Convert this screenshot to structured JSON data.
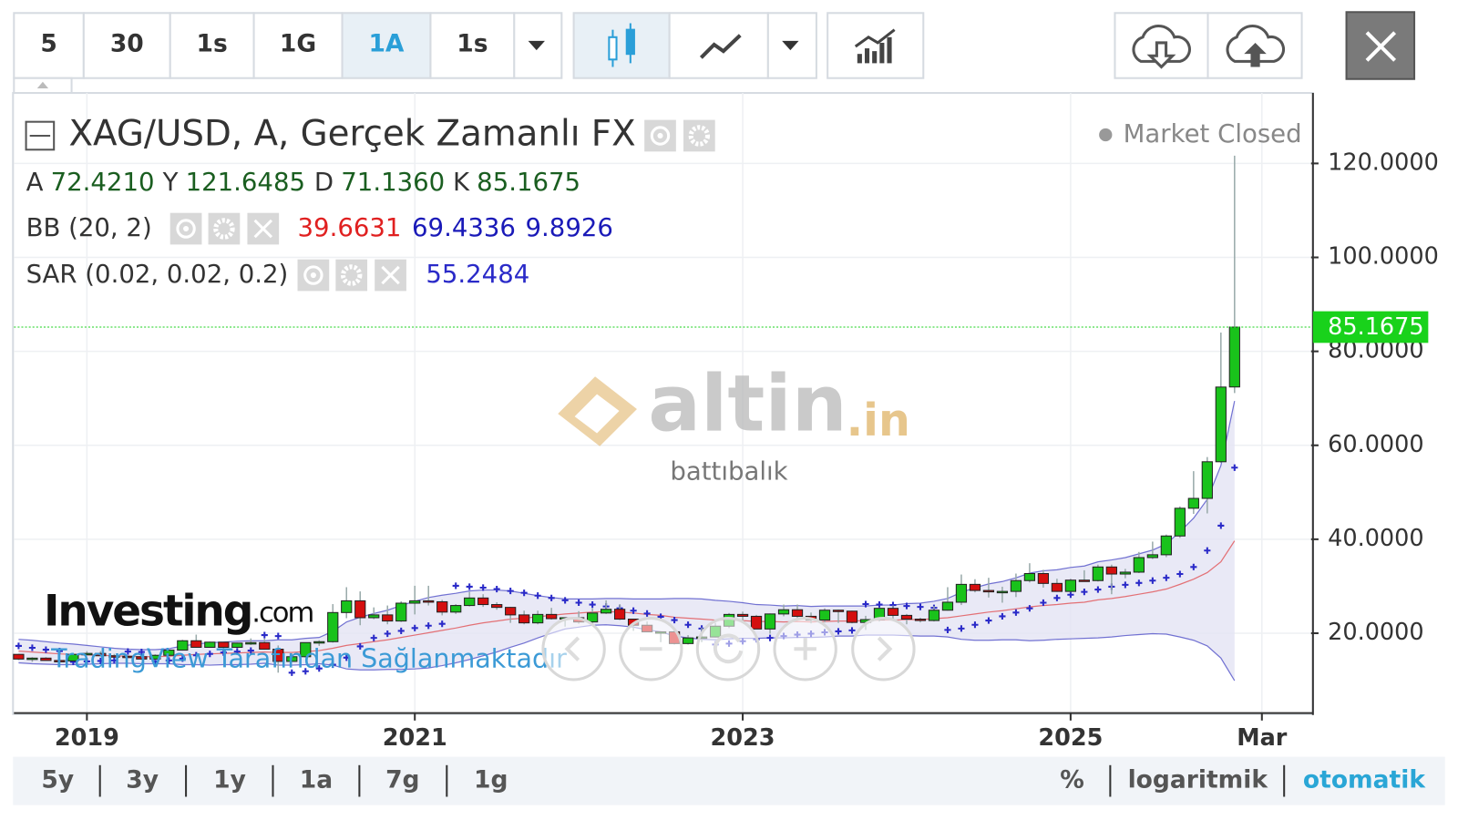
{
  "toolbar": {
    "intervals": [
      "5",
      "30",
      "1s",
      "1G",
      "1A",
      "1s"
    ],
    "active_interval": 4
  },
  "chart_data": {
    "type": "candlestick",
    "title": "XAG/USD, A, Gerçek Zamanlı FX",
    "status": "Market Closed",
    "ohlc_letters": [
      "A",
      "Y",
      "D",
      "K"
    ],
    "ohlc_labels": [
      "72.4210",
      "121.6485",
      "71.1360",
      "85.1675"
    ],
    "up_color": "#19c21b",
    "down_color": "#d40f0f",
    "last_price_color": "#19d21b",
    "candles": [
      [
        15.5,
        15.6,
        14.3,
        14.5
      ],
      [
        14.5,
        14.9,
        13.9,
        14.7
      ],
      [
        14.7,
        14.9,
        14.2,
        14.2
      ],
      [
        14.2,
        14.6,
        13.9,
        14.1
      ],
      [
        14.1,
        15.6,
        14.1,
        15.5
      ],
      [
        15.5,
        16.2,
        15.4,
        15.7
      ],
      [
        15.7,
        16.2,
        15.2,
        15.2
      ],
      [
        15.2,
        15.6,
        14.8,
        15.1
      ],
      [
        15.1,
        15.3,
        14.8,
        15.0
      ],
      [
        15.0,
        15.0,
        14.3,
        14.5
      ],
      [
        14.5,
        15.5,
        14.3,
        15.3
      ],
      [
        15.3,
        16.5,
        15.0,
        16.4
      ],
      [
        16.4,
        18.6,
        16.3,
        18.4
      ],
      [
        18.4,
        19.7,
        16.9,
        17.0
      ],
      [
        17.0,
        18.2,
        17.0,
        18.1
      ],
      [
        18.1,
        18.1,
        16.6,
        17.0
      ],
      [
        17.0,
        18.0,
        16.8,
        17.9
      ],
      [
        17.9,
        18.9,
        17.5,
        18.0
      ],
      [
        18.0,
        18.9,
        16.5,
        16.6
      ],
      [
        16.6,
        17.4,
        11.6,
        14.0
      ],
      [
        14.0,
        15.7,
        13.9,
        15.0
      ],
      [
        15.0,
        18.0,
        14.8,
        18.0
      ],
      [
        18.0,
        18.5,
        17.3,
        18.2
      ],
      [
        18.2,
        26.2,
        18.0,
        24.4
      ],
      [
        24.4,
        29.8,
        23.2,
        26.9
      ],
      [
        26.9,
        28.9,
        21.7,
        23.3
      ],
      [
        23.3,
        25.5,
        23.0,
        23.9
      ],
      [
        23.9,
        25.9,
        21.9,
        22.6
      ],
      [
        22.6,
        26.8,
        22.4,
        26.4
      ],
      [
        26.4,
        30.1,
        24.0,
        26.9
      ],
      [
        26.9,
        30.1,
        25.9,
        26.7
      ],
      [
        26.7,
        27.1,
        23.8,
        24.5
      ],
      [
        24.5,
        26.2,
        24.1,
        25.9
      ],
      [
        25.9,
        28.8,
        25.7,
        27.5
      ],
      [
        27.5,
        28.3,
        25.6,
        26.1
      ],
      [
        26.1,
        26.6,
        25.0,
        25.5
      ],
      [
        25.5,
        25.6,
        22.2,
        23.9
      ],
      [
        23.9,
        24.8,
        21.9,
        22.2
      ],
      [
        22.2,
        24.8,
        21.9,
        24.0
      ],
      [
        24.0,
        25.4,
        22.9,
        23.1
      ],
      [
        23.1,
        23.3,
        21.4,
        23.3
      ],
      [
        23.3,
        24.7,
        22.0,
        22.4
      ],
      [
        22.4,
        25.4,
        22.0,
        24.3
      ],
      [
        24.3,
        27.0,
        24.1,
        25.1
      ],
      [
        25.1,
        26.2,
        22.8,
        23.0
      ],
      [
        23.0,
        23.1,
        20.5,
        21.7
      ],
      [
        21.7,
        22.5,
        20.3,
        20.3
      ],
      [
        20.3,
        20.4,
        18.1,
        20.3
      ],
      [
        20.3,
        20.9,
        17.6,
        17.8
      ],
      [
        17.8,
        19.6,
        17.6,
        19.0
      ],
      [
        19.0,
        21.2,
        18.1,
        19.2
      ],
      [
        19.2,
        22.2,
        19.1,
        21.5
      ],
      [
        21.5,
        24.3,
        21.1,
        24.0
      ],
      [
        24.0,
        24.6,
        22.8,
        23.6
      ],
      [
        23.6,
        23.9,
        20.9,
        20.9
      ],
      [
        20.9,
        24.2,
        19.9,
        24.1
      ],
      [
        24.1,
        26.1,
        23.6,
        25.0
      ],
      [
        25.0,
        26.1,
        23.1,
        23.6
      ],
      [
        23.6,
        24.4,
        22.1,
        22.8
      ],
      [
        22.8,
        25.3,
        22.3,
        24.9
      ],
      [
        24.9,
        25.0,
        22.2,
        24.7
      ],
      [
        24.7,
        24.8,
        22.1,
        22.3
      ],
      [
        22.3,
        23.7,
        20.7,
        22.9
      ],
      [
        22.9,
        25.5,
        22.5,
        25.3
      ],
      [
        25.3,
        25.9,
        22.8,
        23.8
      ],
      [
        23.8,
        24.1,
        21.9,
        23.0
      ],
      [
        23.0,
        23.3,
        22.3,
        22.7
      ],
      [
        22.7,
        25.8,
        22.5,
        24.9
      ],
      [
        24.9,
        29.8,
        24.8,
        26.6
      ],
      [
        26.6,
        32.5,
        26.0,
        30.4
      ],
      [
        30.4,
        31.5,
        28.7,
        29.1
      ],
      [
        29.1,
        31.8,
        27.6,
        28.9
      ],
      [
        28.9,
        29.9,
        26.5,
        28.9
      ],
      [
        28.9,
        32.7,
        27.7,
        31.2
      ],
      [
        31.2,
        34.9,
        30.8,
        32.7
      ],
      [
        32.7,
        33.5,
        29.7,
        30.6
      ],
      [
        30.6,
        31.6,
        28.8,
        28.9
      ],
      [
        28.9,
        31.6,
        28.7,
        31.3
      ],
      [
        31.3,
        33.4,
        31.0,
        31.2
      ],
      [
        31.2,
        34.6,
        31.0,
        34.1
      ],
      [
        34.1,
        34.6,
        28.3,
        32.6
      ],
      [
        32.6,
        33.7,
        31.7,
        33.0
      ],
      [
        33.0,
        37.3,
        32.8,
        36.1
      ],
      [
        36.1,
        39.5,
        35.8,
        36.7
      ],
      [
        36.7,
        41.0,
        36.2,
        40.7
      ],
      [
        40.7,
        47.0,
        40.3,
        46.6
      ],
      [
        46.6,
        54.5,
        45.4,
        48.7
      ],
      [
        48.7,
        57.5,
        45.5,
        56.5
      ],
      [
        56.5,
        84.0,
        56.3,
        72.4
      ],
      [
        72.421,
        121.6485,
        71.136,
        85.1675
      ]
    ],
    "bb": {
      "name": "BB (20, 2)",
      "middle_color": "#e02020",
      "band_color": "#1a1ab8",
      "fill": "#e4e4f4",
      "middle": [
        16.2,
        16.0,
        15.8,
        15.6,
        15.5,
        15.4,
        15.3,
        15.2,
        15.1,
        15.0,
        15.0,
        15.1,
        15.3,
        15.5,
        15.6,
        15.7,
        15.8,
        15.9,
        16.0,
        15.9,
        15.9,
        16.1,
        16.3,
        16.8,
        17.4,
        17.8,
        18.2,
        18.6,
        19.1,
        19.6,
        20.1,
        20.6,
        21.1,
        21.7,
        22.2,
        22.6,
        23.0,
        23.2,
        23.5,
        23.8,
        24.1,
        24.3,
        24.5,
        24.6,
        24.5,
        24.3,
        24.0,
        23.8,
        23.4,
        23.2,
        23.0,
        22.8,
        22.8,
        22.7,
        22.5,
        22.5,
        22.4,
        22.5,
        22.4,
        22.5,
        22.6,
        22.6,
        22.7,
        22.8,
        22.8,
        22.9,
        22.9,
        23.1,
        23.3,
        23.7,
        24.1,
        24.5,
        24.8,
        25.2,
        25.6,
        25.9,
        26.1,
        26.4,
        26.6,
        27.1,
        27.4,
        27.8,
        28.3,
        28.8,
        29.4,
        30.4,
        31.5,
        32.9,
        35.2,
        39.6631
      ],
      "upper": [
        18.7,
        18.5,
        18.2,
        17.9,
        17.7,
        17.4,
        17.1,
        16.8,
        16.6,
        16.5,
        16.5,
        16.7,
        17.3,
        17.7,
        18.0,
        18.1,
        18.3,
        18.4,
        18.4,
        18.6,
        18.6,
        18.9,
        19.1,
        20.4,
        22.4,
        23.4,
        24.2,
        24.9,
        25.9,
        26.8,
        27.6,
        28.1,
        28.5,
        29.0,
        29.2,
        29.2,
        29.0,
        28.5,
        28.0,
        27.6,
        27.3,
        27.3,
        27.3,
        27.4,
        27.4,
        27.3,
        27.3,
        27.3,
        27.4,
        27.4,
        27.3,
        27.0,
        26.8,
        26.5,
        26.1,
        26.0,
        25.8,
        25.9,
        25.7,
        25.8,
        25.8,
        25.8,
        25.8,
        26.0,
        26.0,
        26.3,
        26.4,
        26.8,
        27.4,
        28.7,
        29.7,
        30.5,
        31.0,
        31.8,
        32.8,
        33.3,
        33.5,
        34.0,
        34.3,
        35.2,
        35.6,
        36.1,
        36.9,
        37.7,
        39.0,
        41.6,
        44.5,
        48.5,
        55.7,
        69.4336
      ],
      "lower": [
        13.7,
        13.5,
        13.4,
        13.3,
        13.3,
        13.4,
        13.5,
        13.6,
        13.6,
        13.5,
        13.5,
        13.5,
        13.3,
        13.3,
        13.2,
        13.3,
        13.3,
        13.4,
        13.6,
        13.2,
        13.2,
        13.3,
        13.5,
        13.2,
        12.4,
        12.2,
        12.2,
        12.3,
        12.3,
        12.4,
        12.6,
        13.1,
        13.7,
        14.4,
        15.2,
        16.0,
        17.0,
        17.9,
        19.0,
        20.0,
        20.9,
        21.3,
        21.7,
        21.8,
        21.6,
        21.3,
        20.7,
        20.3,
        19.4,
        19.0,
        18.7,
        18.6,
        18.8,
        18.9,
        18.9,
        19.0,
        19.0,
        19.1,
        19.1,
        19.2,
        19.4,
        19.4,
        19.6,
        19.6,
        19.6,
        19.5,
        19.4,
        19.4,
        19.2,
        18.7,
        18.5,
        18.5,
        18.6,
        18.6,
        18.4,
        18.5,
        18.7,
        18.8,
        18.9,
        19.0,
        19.2,
        19.5,
        19.7,
        19.9,
        19.8,
        19.2,
        18.5,
        17.3,
        14.7,
        9.8926
      ]
    },
    "sar": {
      "name": "SAR (0.02, 0.02, 0.2)",
      "color": "#2a2ac8",
      "values": [
        17.3,
        16.9,
        16.5,
        16.2,
        13.9,
        14.0,
        14.1,
        14.2,
        16.1,
        16.0,
        14.0,
        14.2,
        14.6,
        15.3,
        15.6,
        15.9,
        16.1,
        16.3,
        19.6,
        19.4,
        11.6,
        11.9,
        12.5,
        13.3,
        14.8,
        17.2,
        19.0,
        19.9,
        20.5,
        21.1,
        21.6,
        22.0,
        30.1,
        29.9,
        29.7,
        29.4,
        29.0,
        28.6,
        28.0,
        27.5,
        27.0,
        26.5,
        26.1,
        25.7,
        25.3,
        24.8,
        24.2,
        23.5,
        22.8,
        21.8,
        21.0,
        17.6,
        17.8,
        18.3,
        18.7,
        19.0,
        19.4,
        19.7,
        19.9,
        20.2,
        20.4,
        20.6,
        26.2,
        26.1,
        26.0,
        25.8,
        25.6,
        25.4,
        20.7,
        21.0,
        21.8,
        22.7,
        23.6,
        24.4,
        25.3,
        26.5,
        27.5,
        28.2,
        28.8,
        29.3,
        29.9,
        30.3,
        30.7,
        31.2,
        31.8,
        32.6,
        34.1,
        37.6,
        42.9,
        55.2484
      ]
    },
    "xlim": [
      -0.34,
      94.6
    ],
    "xticks": [
      {
        "value": 5,
        "label": "2019"
      },
      {
        "value": 29,
        "label": "2021"
      },
      {
        "value": 53,
        "label": "2023"
      },
      {
        "value": 77,
        "label": "2025"
      },
      {
        "value": 91,
        "label": "Mar"
      }
    ],
    "ylim": [
      3,
      135
    ],
    "yticks": [
      {
        "value": 20,
        "label": "20.0000"
      },
      {
        "value": 40,
        "label": "40.0000"
      },
      {
        "value": 60,
        "label": "60.0000"
      },
      {
        "value": 80,
        "label": "80.0000"
      },
      {
        "value": 100,
        "label": "100.0000"
      },
      {
        "value": 120,
        "label": "120.0000"
      }
    ],
    "grid": true
  },
  "watermark": {
    "brand": "altin",
    "tld": ".in",
    "sub": "battıbalık"
  },
  "branding": {
    "logo": "Investing",
    "logo_suffix": ".com",
    "credit": "TradingView Tarafından Sağlanmaktadır"
  },
  "footer": {
    "ranges": [
      "5y",
      "3y",
      "1y",
      "1a",
      "7g",
      "1g"
    ],
    "options": [
      "%",
      "logaritmik",
      "otomatik"
    ],
    "active_option": 2
  }
}
